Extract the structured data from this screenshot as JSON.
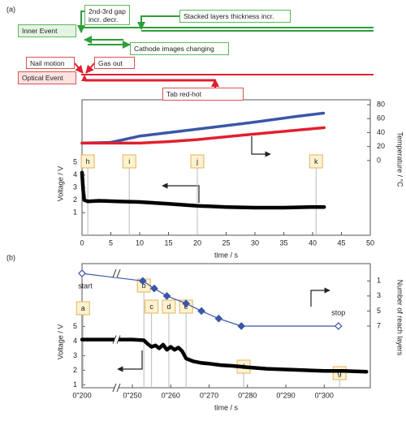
{
  "panel_labels": [
    "(a)",
    "(b)"
  ],
  "timeline": {
    "inner_event": "Inner Event",
    "optical_event": "Optical Event",
    "inner_notes": [
      "2nd-3rd gap incr. decr.",
      "Stacked layers thickness incr.",
      "Cathode images changing"
    ],
    "optical_notes": [
      "Nail motion",
      "Gas out",
      "Tab red-hot"
    ]
  },
  "chart_data": [
    {
      "type": "line",
      "x_label": "time / s",
      "y_label": "Voltage / V",
      "y2_label": "Temperature / °C",
      "xlim": [
        0,
        50
      ],
      "xticks": [
        0,
        5,
        10,
        15,
        20,
        25,
        30,
        35,
        40,
        45,
        50
      ],
      "ylim": [
        -0.8,
        10
      ],
      "yticks": [
        1,
        2,
        3,
        4,
        5
      ],
      "y2lim": [
        -107,
        87
      ],
      "y2ticks": [
        0,
        20,
        40,
        60,
        80
      ],
      "grid": false,
      "series": [
        {
          "color": "#000000",
          "x": [
            0,
            0.2,
            0.4,
            1,
            3,
            6,
            10,
            15,
            20,
            25,
            30,
            35,
            40,
            42
          ],
          "values": [
            4.2,
            2.8,
            2.0,
            1.9,
            1.95,
            1.9,
            1.85,
            1.7,
            1.55,
            1.45,
            1.4,
            1.4,
            1.45,
            1.45
          ]
        },
        {
          "color": "#3a56a6",
          "axis": "y2",
          "x": [
            0,
            5,
            10,
            15,
            20,
            25,
            30,
            37,
            42
          ],
          "values": [
            25,
            26,
            35,
            40,
            45,
            50,
            55,
            63,
            68
          ]
        },
        {
          "color": "#e02030",
          "axis": "y2",
          "x": [
            0,
            5,
            10,
            15,
            20,
            25,
            30,
            38,
            42
          ],
          "values": [
            25,
            25,
            25,
            27,
            30,
            34,
            38,
            44,
            47
          ]
        }
      ],
      "annotations": [
        {
          "text": "h",
          "x": 1.0
        },
        {
          "text": "i",
          "x": 8.2
        },
        {
          "text": "j",
          "x": 20.0
        },
        {
          "text": "k",
          "x": 40.6
        }
      ]
    },
    {
      "type": "line",
      "x_label": "time / s",
      "y_label": "Voltage / V",
      "y2_label": "Number of reach layers",
      "xlim": [
        200,
        312
      ],
      "xbreak": [
        200,
        250
      ],
      "xticks": [
        {
          "value": 200,
          "label": "0\"200"
        },
        {
          "value": 250,
          "label": "0\"250"
        },
        {
          "value": 260,
          "label": "0\"260"
        },
        {
          "value": 270,
          "label": "0\"270"
        },
        {
          "value": 280,
          "label": "0\"280"
        },
        {
          "value": 290,
          "label": "0\"290"
        },
        {
          "value": 300,
          "label": "0\"300"
        }
      ],
      "ylim": [
        0.8,
        9.3
      ],
      "yticks": [
        1,
        2,
        3,
        4,
        5
      ],
      "y2lim": [
        -1.3,
        15.2
      ],
      "y2reverse": true,
      "y2ticks": [
        1,
        3,
        5,
        7
      ],
      "grid": false,
      "series": [
        {
          "color": "#000000",
          "x": [
            200,
            250,
            253,
            254,
            255,
            256,
            257,
            258,
            259,
            260,
            261,
            262,
            263,
            264,
            266,
            268,
            270,
            273,
            276,
            280,
            285,
            290,
            295,
            300,
            305,
            311
          ],
          "values": [
            4.1,
            4.1,
            4.05,
            3.8,
            3.6,
            3.7,
            3.5,
            3.75,
            3.4,
            3.6,
            3.4,
            3.55,
            3.3,
            2.8,
            2.6,
            2.5,
            2.45,
            2.35,
            2.3,
            2.2,
            2.1,
            2.05,
            2.0,
            1.95,
            1.95,
            1.9
          ]
        },
        {
          "color": "#3a56a6",
          "axis": "y2",
          "marker": "diamond",
          "x": [
            200,
            252.7,
            255.7,
            259,
            264,
            268,
            272.5,
            278.4,
            303.7
          ],
          "values": [
            0,
            1,
            2,
            3,
            4,
            5,
            6,
            7,
            7
          ]
        }
      ],
      "notes": [
        "start",
        "stop"
      ],
      "annotations": [
        {
          "text": "a",
          "x": 201
        },
        {
          "text": "b",
          "x": 253
        },
        {
          "text": "c",
          "x": 255
        },
        {
          "text": "d",
          "x": 259.5
        },
        {
          "text": "e",
          "x": 264
        },
        {
          "text": "f",
          "x": 279
        },
        {
          "text": "g",
          "x": 304
        }
      ]
    }
  ]
}
